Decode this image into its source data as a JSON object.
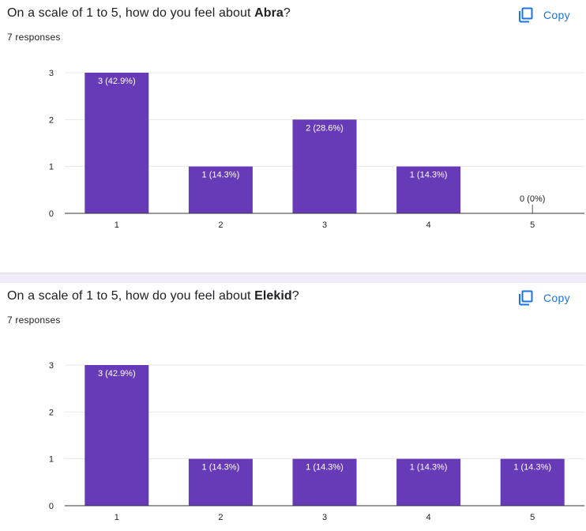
{
  "cards": [
    {
      "title_prefix": "On a scale of 1 to 5, how do you feel about ",
      "title_bold": "Abra",
      "title_suffix": "?",
      "responses": "7 responses",
      "copy_label": "Copy"
    },
    {
      "title_prefix": "On a scale of 1 to 5, how do you feel about ",
      "title_bold": "Elekid",
      "title_suffix": "?",
      "responses": "7 responses",
      "copy_label": "Copy"
    }
  ],
  "colors": {
    "bar": "#673ab7",
    "copy": "#1a73e8",
    "divider": "#f0ebf8"
  },
  "chart_data": [
    {
      "type": "bar",
      "categories": [
        "1",
        "2",
        "3",
        "4",
        "5"
      ],
      "values": [
        3,
        1,
        2,
        1,
        0
      ],
      "data_labels": [
        "3 (42.9%)",
        "1 (14.3%)",
        "2 (28.6%)",
        "1 (14.3%)",
        "0 (0%)"
      ],
      "yticks": [
        "0",
        "1",
        "2",
        "3"
      ],
      "ylim": [
        0,
        3
      ],
      "grid": true
    },
    {
      "type": "bar",
      "categories": [
        "1",
        "2",
        "3",
        "4",
        "5"
      ],
      "values": [
        3,
        1,
        1,
        1,
        1
      ],
      "data_labels": [
        "3 (42.9%)",
        "1 (14.3%)",
        "1 (14.3%)",
        "1 (14.3%)",
        "1 (14.3%)"
      ],
      "yticks": [
        "0",
        "1",
        "2",
        "3"
      ],
      "ylim": [
        0,
        3
      ],
      "grid": true
    }
  ]
}
